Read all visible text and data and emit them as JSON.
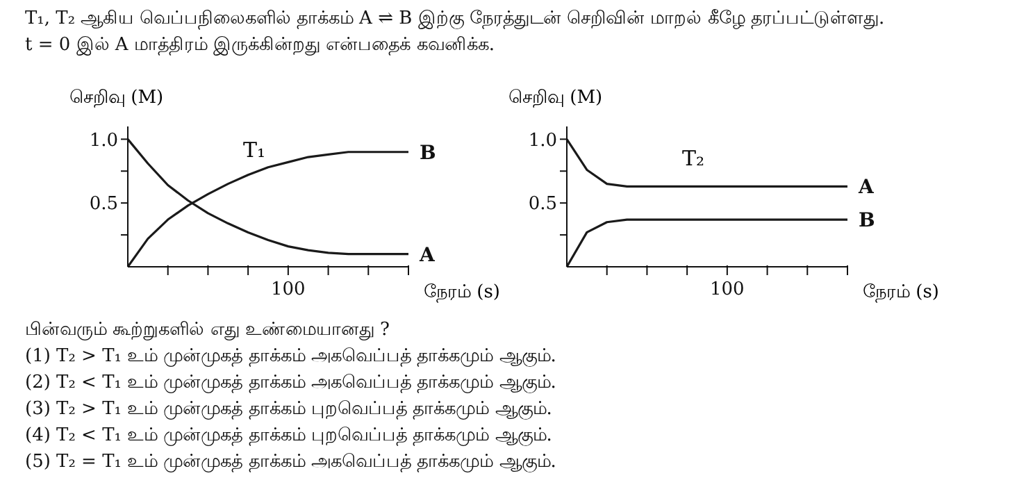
{
  "chart_data": [
    {
      "type": "other",
      "annotations": [
        "T₁, T₂ ஆகிய வெப்பநிலைகளில் தாக்கம் A ⇌ B இற்கு நேரத்துடன் செறிவின் மாறல் கீழே தரப்பட்டுள்ளது.",
        "t = 0 இல் A மாத்திரம் இருக்கின்றது என்பதைக் கவனிக்க."
      ]
    },
    {
      "type": "line",
      "ylabel": "செறிவு (M)",
      "xlabel": "நேரம் (s)",
      "annotations": [
        "T₁"
      ],
      "categories": [
        null,
        null,
        null,
        null,
        null,
        null,
        null,
        null,
        "100",
        null,
        null,
        null,
        null,
        null,
        null
      ],
      "ylim": [
        0,
        1.1
      ],
      "yticks": [
        {
          "value": 0.25,
          "label": null
        },
        {
          "value": 0.5,
          "label": "0.5"
        },
        {
          "value": 0.75,
          "label": null
        },
        {
          "value": 1,
          "label": "1.0"
        }
      ],
      "marker": "none",
      "series": [
        {
          "name": "A",
          "color": "#1a1a1a",
          "values": [
            1.0,
            0.81,
            0.64,
            0.52,
            0.42,
            0.34,
            0.27,
            0.21,
            0.16,
            0.13,
            0.11,
            0.1,
            0.1,
            0.1,
            0.1
          ]
        },
        {
          "name": "B",
          "color": "#1a1a1a",
          "values": [
            0,
            0.22,
            0.37,
            0.48,
            0.57,
            0.65,
            0.72,
            0.78,
            0.82,
            0.86,
            0.88,
            0.9,
            0.9,
            0.9,
            0.9
          ]
        }
      ]
    },
    {
      "type": "line",
      "ylabel": "செறிவு (M)",
      "xlabel": "நேரம் (s)",
      "annotations": [
        "T₂"
      ],
      "categories": [
        null,
        null,
        null,
        null,
        null,
        null,
        null,
        null,
        "100",
        null,
        null,
        null,
        null,
        null,
        null
      ],
      "ylim": [
        0,
        1.1
      ],
      "yticks": [
        {
          "value": 0.25,
          "label": null
        },
        {
          "value": 0.5,
          "label": "0.5"
        },
        {
          "value": 0.75,
          "label": null
        },
        {
          "value": 1,
          "label": "1.0"
        }
      ],
      "marker": "none",
      "series": [
        {
          "name": "A",
          "color": "#1a1a1a",
          "values": [
            1.0,
            0.76,
            0.65,
            0.63,
            0.63,
            0.63,
            0.63,
            0.63,
            0.63,
            0.63,
            0.63,
            0.63,
            0.63,
            0.63,
            0.63
          ]
        },
        {
          "name": "B",
          "color": "#1a1a1a",
          "values": [
            0,
            0.27,
            0.35,
            0.37,
            0.37,
            0.37,
            0.37,
            0.37,
            0.37,
            0.37,
            0.37,
            0.37,
            0.37,
            0.37,
            0.37
          ]
        }
      ]
    },
    {
      "type": "other",
      "annotations": [
        "பின்வரும் கூற்றுகளில் எது உண்மையானது ?",
        "(1) T₂ > T₁ உம் முன்முகத் தாக்கம் அகவெப்பத் தாக்கமும் ஆகும்.",
        "(2) T₂ < T₁ உம் முன்முகத் தாக்கம் அகவெப்பத் தாக்கமும் ஆகும்.",
        "(3) T₂ > T₁ உம் முன்முகத் தாக்கம் புறவெப்பத் தாக்கமும் ஆகும்.",
        "(4) T₂ < T₁ உம் முன்முகத் தாக்கம் புறவெப்பத் தாக்கமும் ஆகும்.",
        "(5) T₂ = T₁ உம் முன்முகத் தாக்கம் அகவெப்பத் தாக்கமும் ஆகும்."
      ]
    }
  ]
}
